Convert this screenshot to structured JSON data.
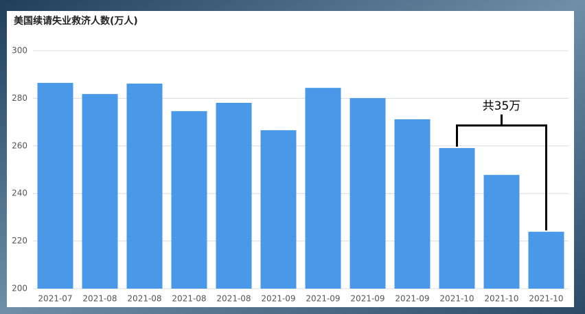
{
  "chart_data": {
    "type": "bar",
    "title": "美国续请失业救济人数(万人)",
    "categories": [
      "2021-07",
      "2021-08",
      "2021-08",
      "2021-08",
      "2021-08",
      "2021-09",
      "2021-09",
      "2021-09",
      "2021-09",
      "2021-10",
      "2021-10",
      "2021-10"
    ],
    "values": [
      286.5,
      281.8,
      286.2,
      274.6,
      278.1,
      266.6,
      284.4,
      280.1,
      271.2,
      259.1,
      247.8,
      223.9
    ],
    "color": "#4a98e8",
    "ylim": [
      200,
      300
    ],
    "yticks": [
      200,
      220,
      240,
      260,
      280,
      300
    ],
    "grid": true,
    "annotation": "共35万"
  }
}
